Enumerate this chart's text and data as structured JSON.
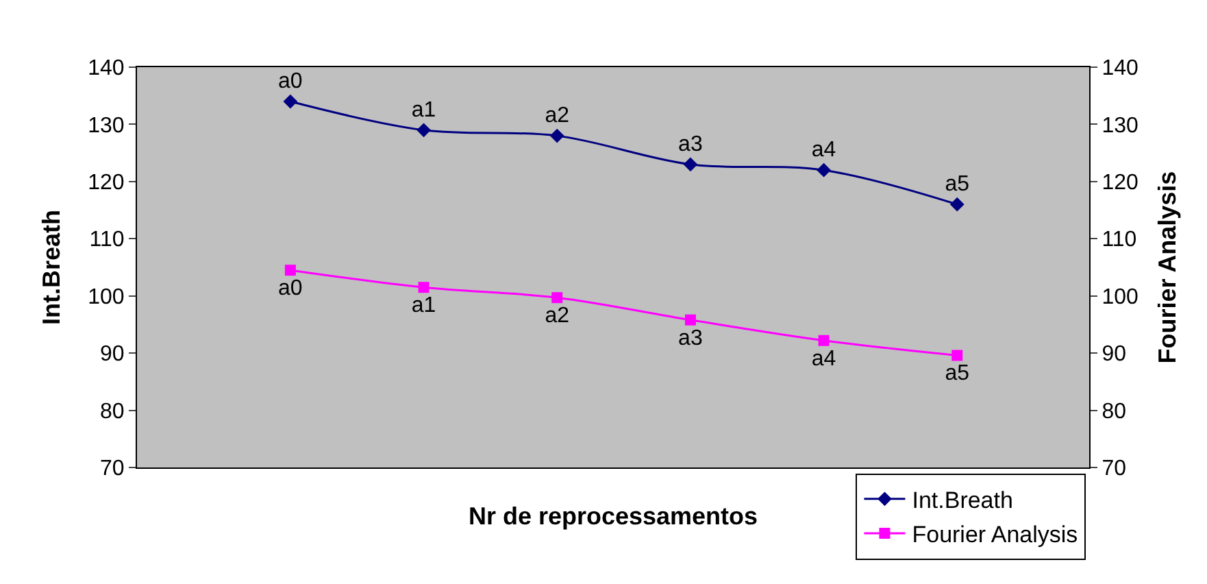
{
  "chart_data": {
    "type": "line",
    "xlabel": "Nr de reprocessamentos",
    "ylabel": "Int.Breath",
    "y2label": "Fourier Analysis",
    "categories": [
      null,
      null,
      null,
      null,
      null,
      null
    ],
    "series": [
      {
        "name": "Int.Breath",
        "color": "#000080",
        "marker": "diamond",
        "values": [
          134,
          129,
          128,
          123,
          122,
          116
        ],
        "value_labels": [
          "a0",
          "a1",
          "a2",
          "a3",
          "a4",
          "a5"
        ]
      },
      {
        "name": "Fourier Analysis",
        "color": "#ff00ff",
        "marker": "square",
        "axis": "y2",
        "values": [
          104.5,
          101.5,
          99.7,
          95.8,
          92.2,
          89.6
        ],
        "value_labels": [
          "a0",
          "a1",
          "a2",
          "a3",
          "a4",
          "a5"
        ]
      }
    ],
    "ylim": [
      70,
      140
    ],
    "yticks": [
      70,
      80,
      90,
      100,
      110,
      120,
      130,
      140
    ],
    "y2lim": [
      70,
      140
    ],
    "y2ticks": [
      70,
      80,
      90,
      100,
      110,
      120,
      130,
      140
    ],
    "grid": false,
    "legend": "bottom right"
  }
}
